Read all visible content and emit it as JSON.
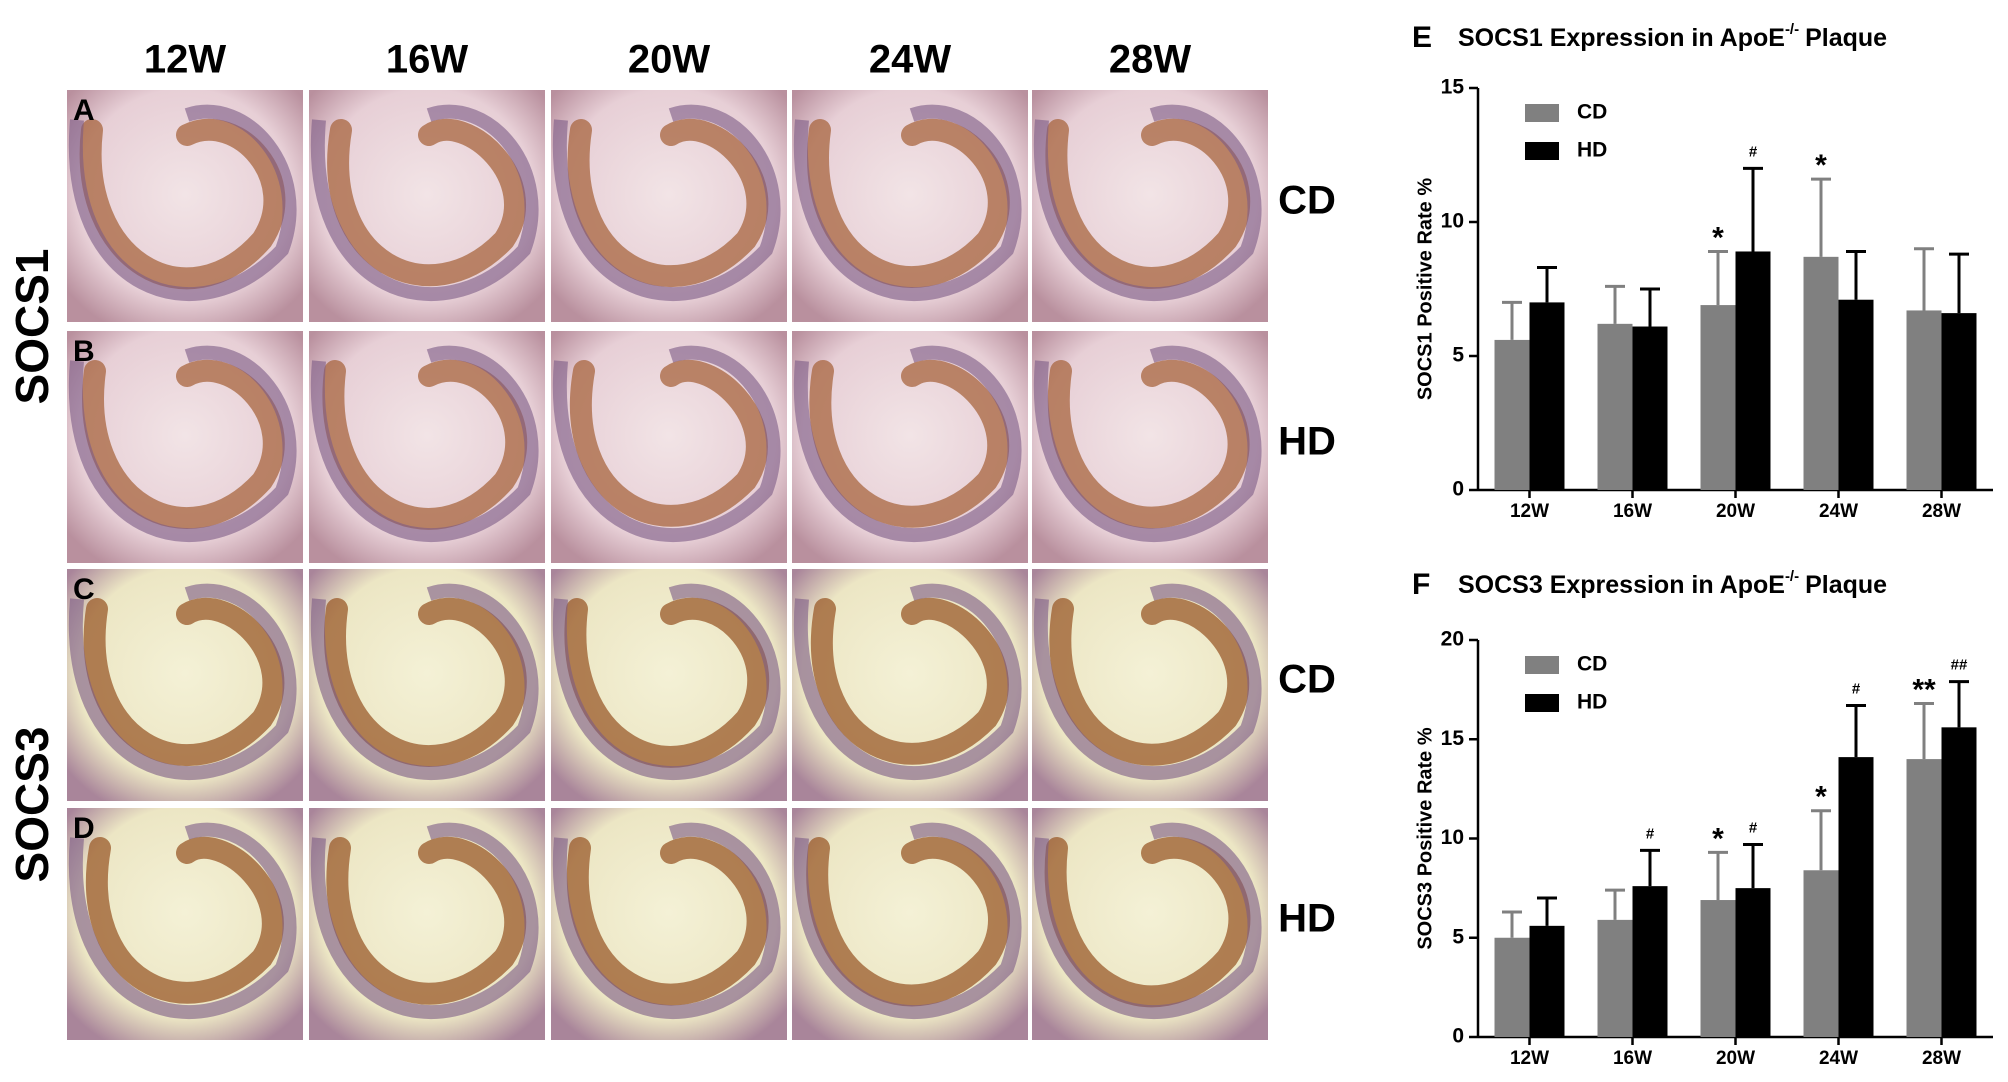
{
  "micrographs": {
    "columns": [
      "12W",
      "16W",
      "20W",
      "24W",
      "28W"
    ],
    "groups": [
      {
        "label": "SOCS1",
        "rows": [
          {
            "panel": "A",
            "diet": "CD"
          },
          {
            "panel": "B",
            "diet": "HD"
          }
        ]
      },
      {
        "label": "SOCS3",
        "rows": [
          {
            "panel": "C",
            "diet": "CD"
          },
          {
            "panel": "D",
            "diet": "HD"
          }
        ]
      }
    ]
  },
  "chart_data": [
    {
      "type": "bar",
      "label": "E",
      "title": [
        "SOCS1 Expression in ApoE",
        "-/-",
        "Plaque"
      ],
      "y_label": "SOCS1 Positive Rate %",
      "categories": [
        "12W",
        "16W",
        "20W",
        "24W",
        "28W"
      ],
      "series": [
        {
          "name": "CD",
          "color": "#808080",
          "values": [
            5.6,
            6.2,
            6.9,
            8.7,
            6.7
          ],
          "errors": [
            1.4,
            1.4,
            2.0,
            2.9,
            2.3
          ],
          "annotations": [
            null,
            null,
            "*",
            "*",
            null
          ]
        },
        {
          "name": "HD",
          "color": "#000000",
          "values": [
            7.0,
            6.1,
            8.9,
            7.1,
            6.6
          ],
          "errors": [
            1.3,
            1.4,
            3.1,
            1.8,
            2.2
          ],
          "annotations": [
            null,
            null,
            "#",
            null,
            null
          ]
        }
      ],
      "ylim": [
        0,
        15
      ],
      "yticks": [
        0,
        5,
        10,
        15
      ],
      "grid": false,
      "legend": "upper-left"
    },
    {
      "type": "bar",
      "label": "F",
      "title": [
        "SOCS3 Expression in ApoE",
        "-/-",
        "Plaque"
      ],
      "y_label": "SOCS3 Positive Rate %",
      "categories": [
        "12W",
        "16W",
        "20W",
        "24W",
        "28W"
      ],
      "series": [
        {
          "name": "CD",
          "color": "#808080",
          "values": [
            5.0,
            5.9,
            6.9,
            8.4,
            14.0
          ],
          "errors": [
            1.3,
            1.5,
            2.4,
            3.0,
            2.8
          ],
          "annotations": [
            null,
            null,
            "*",
            "*",
            "**"
          ]
        },
        {
          "name": "HD",
          "color": "#000000",
          "values": [
            5.6,
            7.6,
            7.5,
            14.1,
            15.6
          ],
          "errors": [
            1.4,
            1.8,
            2.2,
            2.6,
            2.3
          ],
          "annotations": [
            null,
            "#",
            "#",
            "#",
            "##"
          ]
        }
      ],
      "ylim": [
        0,
        20
      ],
      "yticks": [
        0,
        5,
        10,
        15,
        20
      ],
      "grid": false,
      "legend": "upper-left"
    }
  ]
}
